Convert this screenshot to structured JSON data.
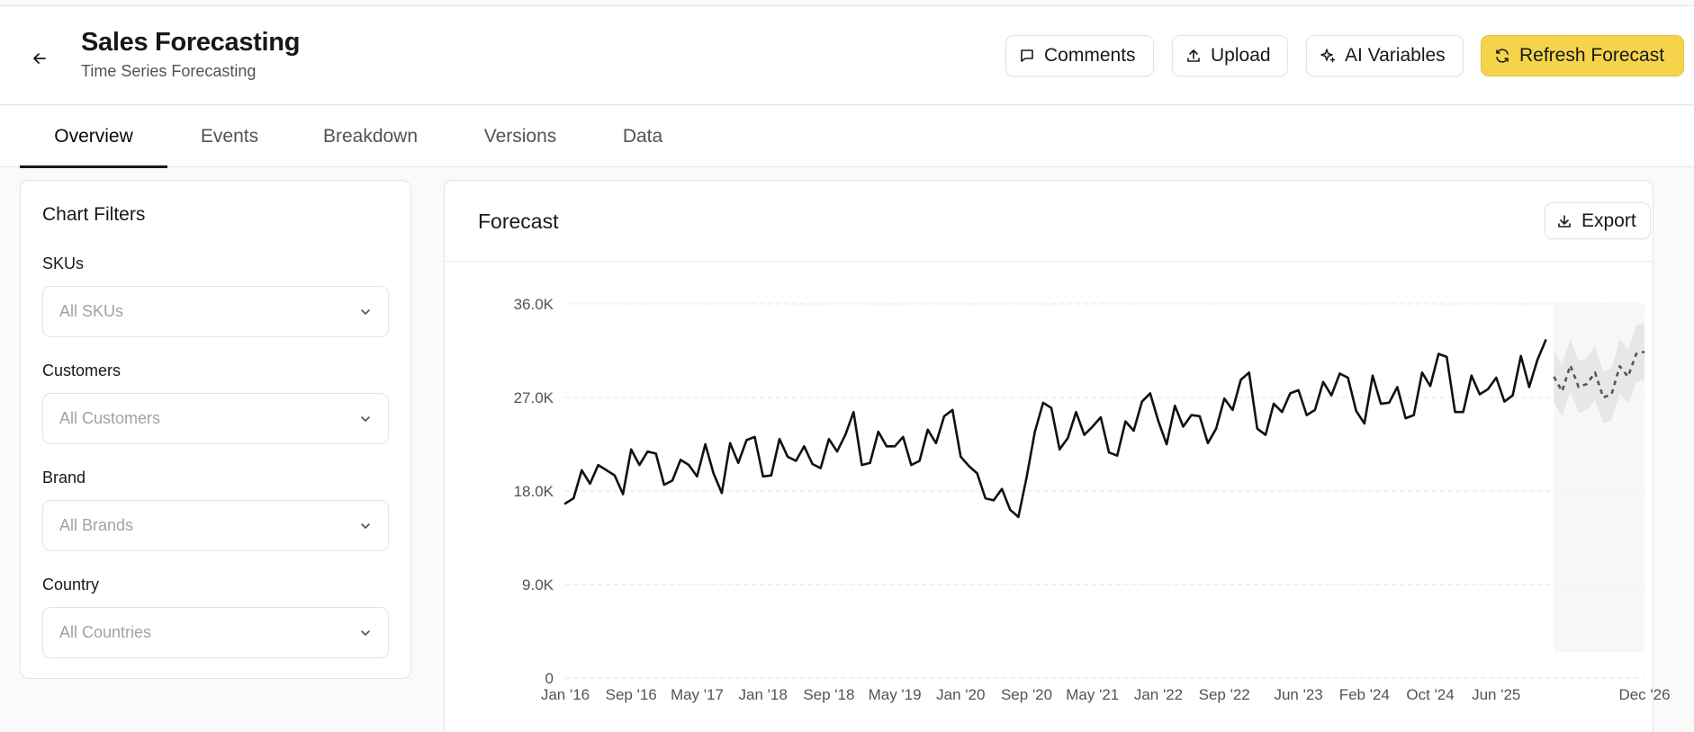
{
  "header": {
    "title": "Sales Forecasting",
    "subtitle": "Time Series Forecasting",
    "buttons": {
      "comments": "Comments",
      "upload": "Upload",
      "ai_variables": "AI Variables",
      "refresh": "Refresh Forecast"
    }
  },
  "tabs": [
    "Overview",
    "Events",
    "Breakdown",
    "Versions",
    "Data"
  ],
  "active_tab": "Overview",
  "filters": {
    "title": "Chart Filters",
    "fields": [
      {
        "label": "SKUs",
        "placeholder": "All SKUs"
      },
      {
        "label": "Customers",
        "placeholder": "All Customers"
      },
      {
        "label": "Brand",
        "placeholder": "All Brands"
      },
      {
        "label": "Country",
        "placeholder": "All Countries"
      }
    ]
  },
  "forecast": {
    "title": "Forecast",
    "export_label": "Export"
  },
  "colors": {
    "accent": "#f5d44c",
    "line": "#111111",
    "band": "#e4e4e7",
    "grid": "#e4e4e7"
  },
  "chart_data": {
    "type": "line",
    "title": "",
    "xlabel": "",
    "ylabel": "",
    "ylim": [
      0,
      36000
    ],
    "y_ticks": [
      "0",
      "9.0K",
      "18.0K",
      "27.0K",
      "36.0K"
    ],
    "y_tick_values": [
      0,
      9000,
      18000,
      27000,
      36000
    ],
    "x_tick_labels": [
      "Jan '16",
      "Sep '16",
      "May '17",
      "Jan '18",
      "Sep '18",
      "May '19",
      "Jan '20",
      "Sep '20",
      "May '21",
      "Jan '22",
      "Sep '22",
      "Jun '23",
      "Feb '24",
      "Oct '24",
      "Jun '25",
      "Dec '26"
    ],
    "x_tick_month_index": [
      0,
      8,
      16,
      24,
      32,
      40,
      48,
      56,
      64,
      72,
      80,
      89,
      97,
      105,
      113,
      131
    ],
    "grid": true,
    "series": [
      {
        "kind": "actual",
        "start": "2016-01",
        "values": [
          16800,
          17300,
          20000,
          18700,
          20500,
          20000,
          19500,
          17700,
          22000,
          20500,
          21800,
          21600,
          18600,
          19000,
          21000,
          20500,
          19400,
          22500,
          19700,
          17800,
          22600,
          20700,
          22900,
          23200,
          19400,
          19500,
          23000,
          21300,
          20900,
          22300,
          20600,
          20200,
          23000,
          21800,
          23400,
          25600,
          20500,
          20700,
          23700,
          22300,
          22300,
          23200,
          20500,
          20900,
          23900,
          22600,
          25200,
          25800,
          21300,
          20400,
          19700,
          17300,
          17100,
          18200,
          16200,
          15500,
          19300,
          23700,
          26500,
          26000,
          22000,
          23100,
          25600,
          23400,
          24200,
          25100,
          21700,
          21400,
          24700,
          23800,
          26600,
          27400,
          24700,
          22500,
          26200,
          24200,
          25300,
          25200,
          22600,
          24000,
          26900,
          25800,
          28700,
          29400,
          24000,
          23400,
          26400,
          25600,
          27400,
          27700,
          25300,
          25800,
          28500,
          27200,
          29300,
          28900,
          25700,
          24500,
          29100,
          26400,
          26500,
          28000,
          25000,
          25300,
          29400,
          28100,
          31200,
          30900,
          25600,
          25600,
          29100,
          27300,
          27800,
          28900,
          26600,
          27200,
          31000,
          28000,
          30600,
          32500
        ]
      },
      {
        "kind": "forecast",
        "start": "2026-01",
        "values": [
          29000,
          27600,
          30100,
          28000,
          28300,
          29400,
          27000,
          27300,
          30000,
          29000,
          31200,
          31400
        ],
        "lower": [
          26500,
          25200,
          27600,
          25500,
          25800,
          26800,
          24500,
          24800,
          27400,
          26400,
          28500,
          28700
        ],
        "upper": [
          31500,
          30100,
          32600,
          30500,
          30800,
          31900,
          29500,
          29800,
          32600,
          31600,
          33900,
          34200
        ]
      }
    ]
  }
}
